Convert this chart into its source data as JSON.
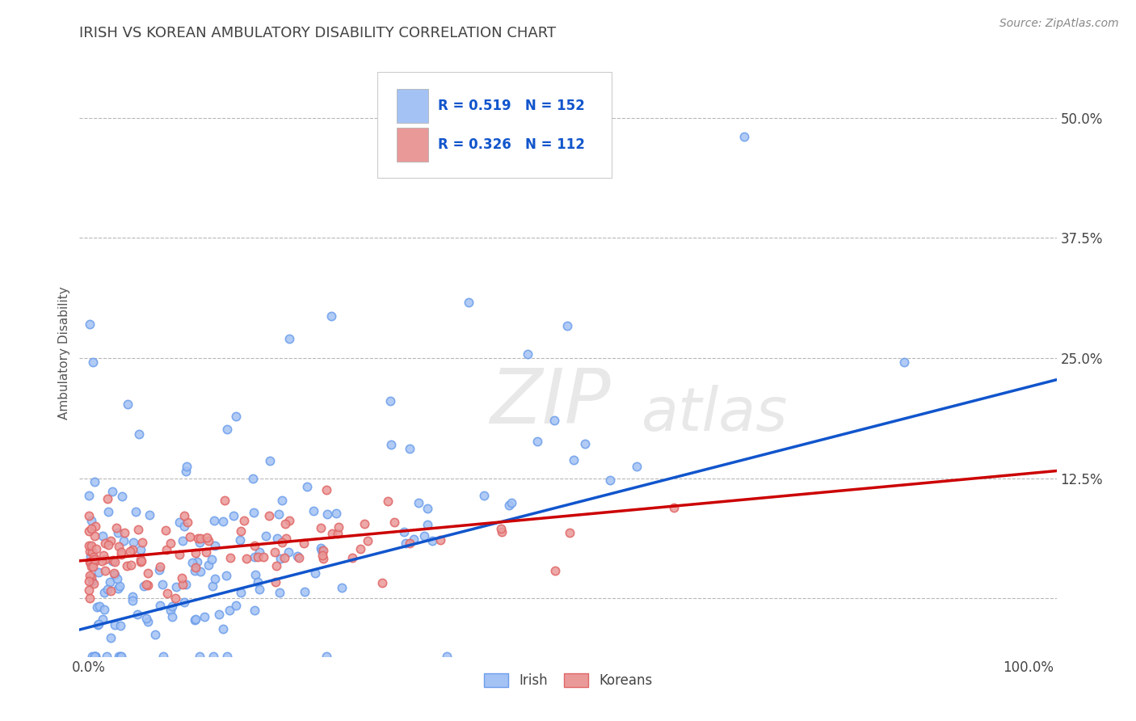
{
  "title": "IRISH VS KOREAN AMBULATORY DISABILITY CORRELATION CHART",
  "source": "Source: ZipAtlas.com",
  "ylabel": "Ambulatory Disability",
  "irish_R": 0.519,
  "irish_N": 152,
  "korean_R": 0.326,
  "korean_N": 112,
  "irish_color": "#a4c2f4",
  "irish_edge_color": "#6d9eeb",
  "korean_color": "#ea9999",
  "korean_edge_color": "#e06666",
  "irish_line_color": "#1155cc",
  "korean_line_color": "#cc0000",
  "background_color": "#ffffff",
  "grid_color": "#b7b7b7",
  "title_color": "#434343",
  "legend_text_color": "#1155cc",
  "watermark_color": "#e8e8e8",
  "irish_line_intercept": -0.03,
  "irish_line_slope": 0.25,
  "korean_line_intercept": 0.04,
  "korean_line_slope": 0.09,
  "xlim": [
    -0.01,
    1.03
  ],
  "ylim": [
    -0.06,
    0.57
  ],
  "yticks": [
    0.0,
    0.125,
    0.25,
    0.375,
    0.5
  ],
  "ytick_labels": [
    "",
    "12.5%",
    "25.0%",
    "37.5%",
    "50.0%"
  ],
  "xtick_labels": [
    "0.0%",
    "100.0%"
  ],
  "xticks": [
    0.0,
    1.0
  ]
}
